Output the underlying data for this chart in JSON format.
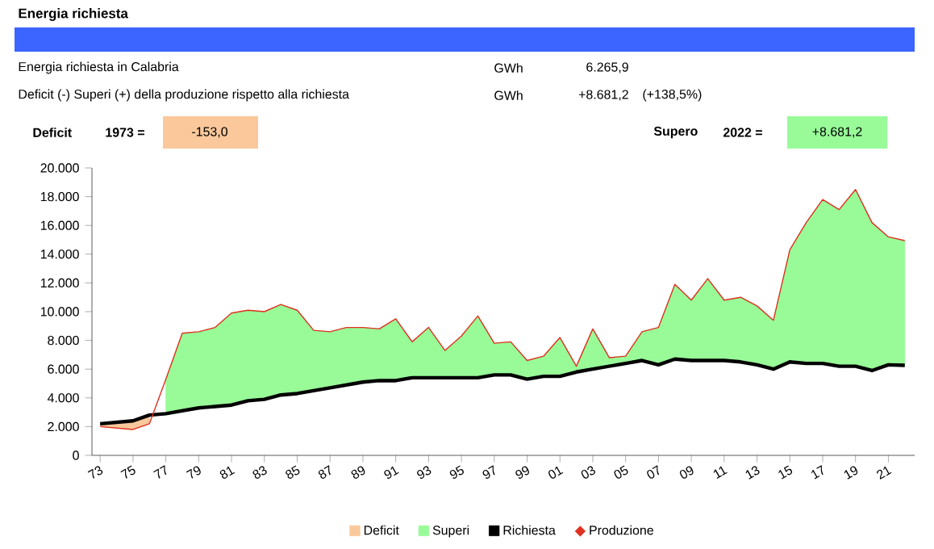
{
  "chart_data": {
    "type": "area",
    "title": "Energia richiesta",
    "annotations": [
      "Energia richiesta in Calabria",
      "GWh",
      "6.265,9",
      "Deficit (-) Superi (+) della produzione rispetto alla richiesta",
      "GWh",
      "+8.681,2",
      "(+138,5%)",
      "Deficit",
      "1973 =",
      "-153,0",
      "Supero",
      "2022 =",
      "+8.681,2"
    ],
    "categories": [
      "73",
      null,
      "75",
      null,
      "77",
      null,
      "79",
      null,
      "81",
      null,
      "83",
      null,
      "85",
      null,
      "87",
      null,
      "89",
      null,
      "91",
      null,
      "93",
      null,
      "95",
      null,
      "97",
      null,
      "99",
      null,
      "01",
      null,
      "03",
      null,
      "05",
      null,
      "07",
      null,
      "09",
      null,
      "11",
      null,
      "13",
      null,
      "15",
      null,
      "17",
      null,
      "19",
      null,
      "21",
      null
    ],
    "ylim": [
      0,
      20000
    ],
    "yticks": [
      {
        "value": 0,
        "label": "0"
      },
      {
        "value": 2000,
        "label": "2.000"
      },
      {
        "value": 4000,
        "label": "4.000"
      },
      {
        "value": 6000,
        "label": "6.000"
      },
      {
        "value": 8000,
        "label": "8.000"
      },
      {
        "value": 10000,
        "label": "10.000"
      },
      {
        "value": 12000,
        "label": "12.000"
      },
      {
        "value": 14000,
        "label": "14.000"
      },
      {
        "value": 16000,
        "label": "16.000"
      },
      {
        "value": 18000,
        "label": "18.000"
      },
      {
        "value": 20000,
        "label": "20.000"
      }
    ],
    "legend": "bottom",
    "series": [
      {
        "name": "Deficit",
        "color": "#f9c89b",
        "values": [
          2200,
          2300,
          2400,
          2800,
          null,
          null,
          null,
          null,
          null,
          null,
          null,
          null,
          null,
          null,
          null,
          null,
          null,
          null,
          null,
          null,
          null,
          null,
          null,
          null,
          null,
          null,
          null,
          null,
          null,
          null,
          null,
          null,
          null,
          null,
          null,
          null,
          null,
          null,
          null,
          null,
          null,
          null,
          null,
          null,
          null,
          null,
          null,
          null,
          null,
          null
        ]
      },
      {
        "name": "Superi",
        "color": "#98fb98",
        "values": [
          null,
          null,
          null,
          null,
          5300,
          8500,
          8600,
          8900,
          9900,
          10100,
          10000,
          10500,
          10100,
          8700,
          8600,
          8900,
          8900,
          8800,
          9500,
          7900,
          8900,
          7300,
          8300,
          9700,
          7800,
          7900,
          6600,
          6900,
          8200,
          6200,
          8800,
          6800,
          6900,
          8600,
          8900,
          11900,
          10800,
          12300,
          10800,
          11000,
          10400,
          9400,
          14300,
          16200,
          17800,
          17100,
          18500,
          16200,
          15200,
          14947.1
        ]
      },
      {
        "name": "Richiesta",
        "type": "line",
        "color": "#000000",
        "values": [
          2200,
          2300,
          2400,
          2800,
          2900,
          3100,
          3300,
          3400,
          3500,
          3800,
          3900,
          4200,
          4300,
          4500,
          4700,
          4900,
          5100,
          5200,
          5200,
          5400,
          5400,
          5400,
          5400,
          5400,
          5600,
          5600,
          5300,
          5500,
          5500,
          5800,
          6000,
          6200,
          6400,
          6600,
          6300,
          6700,
          6600,
          6600,
          6600,
          6500,
          6300,
          6000,
          6500,
          6400,
          6400,
          6200,
          6200,
          5900,
          6300,
          6265.9
        ]
      },
      {
        "name": "Produzione",
        "type": "line",
        "color": "#e03020",
        "values": [
          2000,
          1900,
          1800,
          2200,
          5300,
          8500,
          8600,
          8900,
          9900,
          10100,
          10000,
          10500,
          10100,
          8700,
          8600,
          8900,
          8900,
          8800,
          9500,
          7900,
          8900,
          7300,
          8300,
          9700,
          7800,
          7900,
          6600,
          6900,
          8200,
          6200,
          8800,
          6800,
          6900,
          8600,
          8900,
          11900,
          10800,
          12300,
          10800,
          11000,
          10400,
          9400,
          14300,
          16200,
          17800,
          17100,
          18500,
          16200,
          15200,
          14947.1
        ]
      }
    ]
  }
}
